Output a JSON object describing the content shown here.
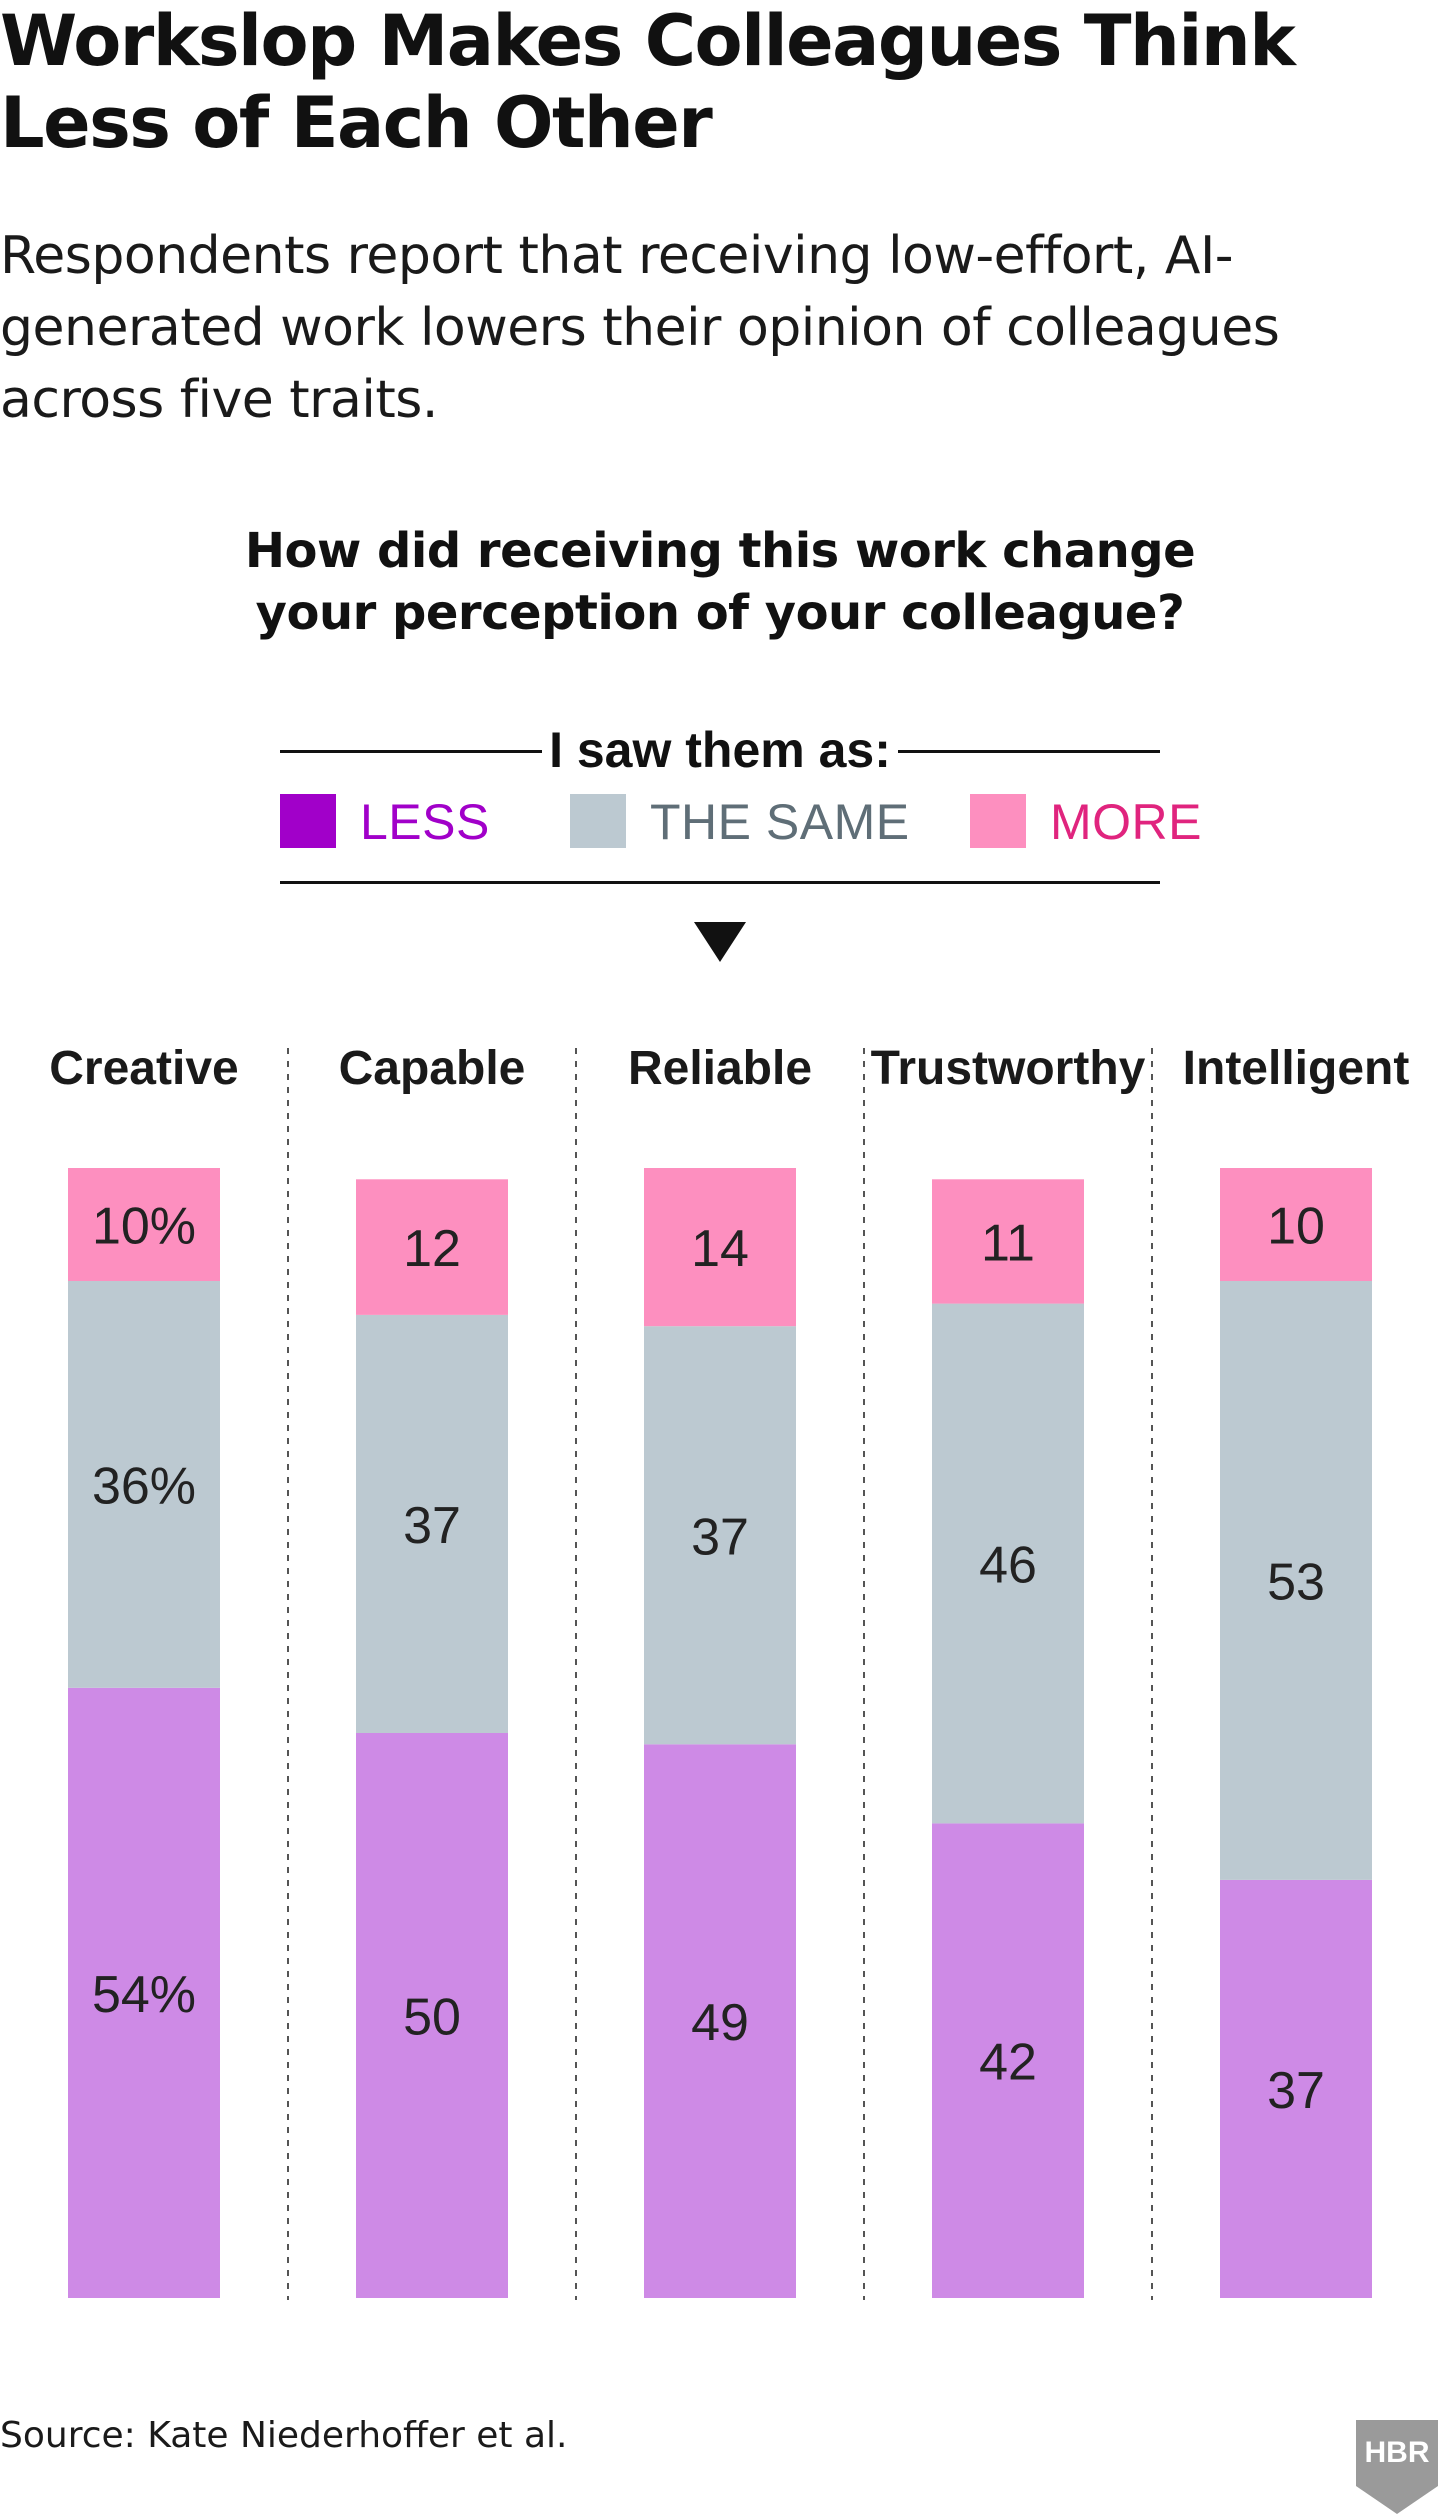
{
  "title": "Workslop Makes Colleagues Think Less of Each Other",
  "subtitle": "Respondents report that receiving low-effort, AI-generated work lowers their opinion of colleagues across five traits.",
  "question": "How did receiving this work change your perception of your colleague?",
  "legend": {
    "heading": "I saw them as:",
    "items": [
      {
        "label": "LESS",
        "color": "#a100c9",
        "text_color": "#a100c9"
      },
      {
        "label": "THE SAME",
        "color": "#bcc9d1",
        "text_color": "#5f6e77"
      },
      {
        "label": "MORE",
        "color": "#fd8fbf",
        "text_color": "#e0247e"
      }
    ]
  },
  "chart_data": {
    "type": "bar",
    "stacked": true,
    "categories": [
      "Creative",
      "Capable",
      "Reliable",
      "Trustworthy",
      "Intelligent"
    ],
    "series": [
      {
        "name": "LESS",
        "values": [
          54,
          50,
          49,
          42,
          37
        ],
        "labels": [
          "54%",
          "50",
          "49",
          "42",
          "37"
        ],
        "color": "#ce8ae6"
      },
      {
        "name": "THE SAME",
        "values": [
          36,
          37,
          37,
          46,
          53
        ],
        "labels": [
          "36%",
          "37",
          "37",
          "46",
          "53"
        ],
        "color": "#bcc9d1"
      },
      {
        "name": "MORE",
        "values": [
          10,
          12,
          14,
          11,
          10
        ],
        "labels": [
          "10%",
          "12",
          "14",
          "11",
          "10"
        ],
        "color": "#fd8fbf"
      }
    ],
    "ylim": [
      0,
      100
    ],
    "grid": false,
    "legend_position": "top"
  },
  "source": "Source: Kate Niederhoffer et al.",
  "logo": {
    "text": "HBR",
    "color": "#9a9a9a"
  }
}
